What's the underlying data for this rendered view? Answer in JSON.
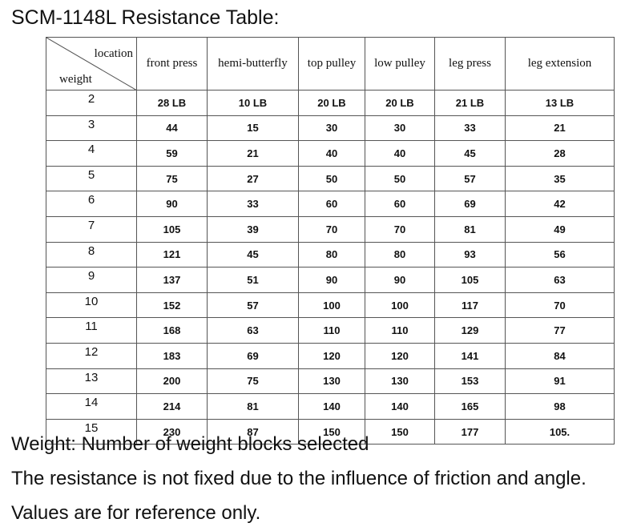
{
  "header": {
    "title": "SCM-1148L Resistance Table:"
  },
  "table": {
    "corner": {
      "top": "location",
      "bottom": "weight"
    },
    "columns": [
      "front press",
      "hemi-butterfly",
      "top pulley",
      "low pulley",
      "leg press",
      "leg extension"
    ],
    "rows": [
      [
        2,
        "28 LB",
        "10 LB",
        "20 LB",
        "20 LB",
        "21 LB",
        "13 LB"
      ],
      [
        3,
        44,
        15,
        30,
        30,
        33,
        21
      ],
      [
        4,
        59,
        21,
        40,
        40,
        45,
        28
      ],
      [
        5,
        75,
        27,
        50,
        50,
        57,
        35
      ],
      [
        6,
        90,
        33,
        60,
        60,
        69,
        42
      ],
      [
        7,
        105,
        39,
        70,
        70,
        81,
        49
      ],
      [
        8,
        121,
        45,
        80,
        80,
        93,
        56
      ],
      [
        9,
        137,
        51,
        90,
        90,
        105,
        63
      ],
      [
        10,
        152,
        57,
        100,
        100,
        117,
        70
      ],
      [
        11,
        168,
        63,
        110,
        110,
        129,
        77
      ],
      [
        12,
        183,
        69,
        120,
        120,
        141,
        84
      ],
      [
        13,
        200,
        75,
        130,
        130,
        153,
        91
      ],
      [
        14,
        214,
        81,
        140,
        140,
        165,
        98
      ],
      [
        15,
        230,
        87,
        150,
        150,
        177,
        "105."
      ]
    ]
  },
  "notes": [
    "Weight: Number of weight blocks selected",
    "The resistance is not fixed due to the influence of friction and angle. Values are for reference only."
  ]
}
